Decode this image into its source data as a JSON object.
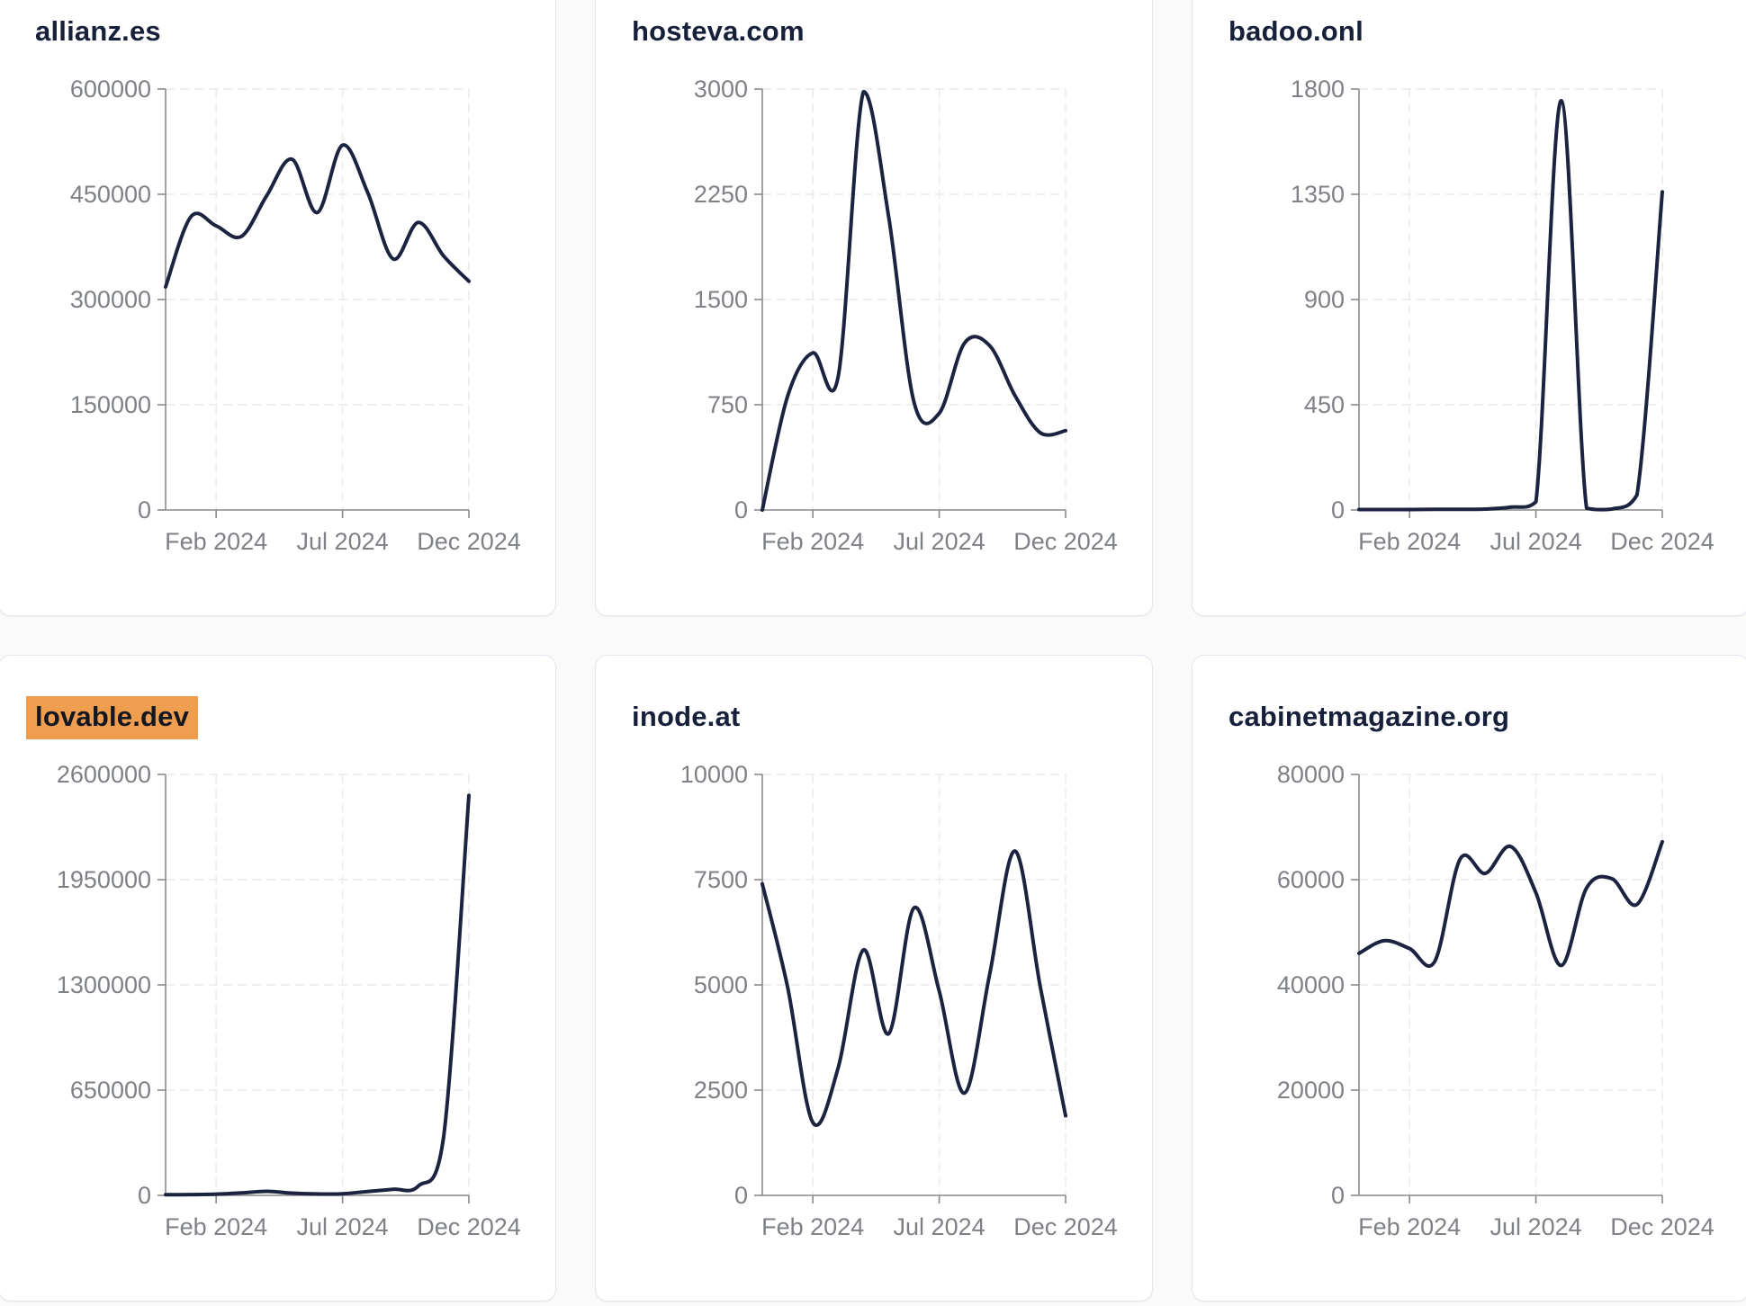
{
  "page": {
    "background": "#fafafa"
  },
  "theme": {
    "card_bg": "#ffffff",
    "card_border": "#e2e7f0",
    "title_color": "#16203a",
    "line_color": "#1c2340",
    "axis_color": "#8a8a8d",
    "grid_color": "#e9eaec",
    "tick_label_color": "#7e8186",
    "highlight_color": "#ef9d4f"
  },
  "chart_data": [
    {
      "type": "line",
      "title": "allianz.es",
      "highlighted": false,
      "x": [
        "Dec 2023",
        "Jan 2024",
        "Feb 2024",
        "Mar 2024",
        "Apr 2024",
        "May 2024",
        "Jun 2024",
        "Jul 2024",
        "Aug 2024",
        "Sep 2024",
        "Oct 2024",
        "Nov 2024",
        "Dec 2024"
      ],
      "values": [
        318000,
        418000,
        405000,
        390000,
        448000,
        500000,
        424000,
        520000,
        452000,
        358000,
        410000,
        362000,
        326000
      ],
      "ylim": [
        0,
        600000
      ],
      "yticks": [
        0,
        150000,
        300000,
        450000,
        600000
      ],
      "xticks": [
        {
          "label": "Feb 2024",
          "index": 2
        },
        {
          "label": "Jul 2024",
          "index": 7
        },
        {
          "label": "Dec 2024",
          "index": 12
        }
      ],
      "grid": "dashed",
      "legend": false
    },
    {
      "type": "line",
      "title": "hosteva.com",
      "highlighted": false,
      "x": [
        "Dec 2023",
        "Jan 2024",
        "Feb 2024",
        "Mar 2024",
        "Apr 2024",
        "May 2024",
        "Jun 2024",
        "Jul 2024",
        "Aug 2024",
        "Sep 2024",
        "Oct 2024",
        "Nov 2024",
        "Dec 2024"
      ],
      "values": [
        0,
        810,
        1120,
        950,
        2980,
        2090,
        770,
        690,
        1190,
        1170,
        815,
        550,
        565
      ],
      "ylim": [
        0,
        3000
      ],
      "yticks": [
        0,
        750,
        1500,
        2250,
        3000
      ],
      "xticks": [
        {
          "label": "Feb 2024",
          "index": 2
        },
        {
          "label": "Jul 2024",
          "index": 7
        },
        {
          "label": "Dec 2024",
          "index": 12
        }
      ],
      "grid": "dashed",
      "legend": false
    },
    {
      "type": "line",
      "title": "badoo.onl",
      "highlighted": false,
      "x": [
        "Dec 2023",
        "Jan 2024",
        "Feb 2024",
        "Mar 2024",
        "Apr 2024",
        "May 2024",
        "Jun 2024",
        "Jul 2024",
        "Aug 2024",
        "Sep 2024",
        "Oct 2024",
        "Nov 2024",
        "Dec 2024"
      ],
      "values": [
        2,
        2,
        2,
        3,
        3,
        4,
        12,
        35,
        1750,
        8,
        4,
        65,
        1360
      ],
      "ylim": [
        0,
        1800
      ],
      "yticks": [
        0,
        450,
        900,
        1350,
        1800
      ],
      "xticks": [
        {
          "label": "Feb 2024",
          "index": 2
        },
        {
          "label": "Jul 2024",
          "index": 7
        },
        {
          "label": "Dec 2024",
          "index": 12
        }
      ],
      "grid": "dashed",
      "legend": false
    },
    {
      "type": "line",
      "title": "lovable.dev",
      "highlighted": true,
      "x": [
        "Dec 2023",
        "Jan 2024",
        "Feb 2024",
        "Mar 2024",
        "Apr 2024",
        "May 2024",
        "Jun 2024",
        "Jul 2024",
        "Aug 2024",
        "Sep 2024",
        "Oct 2024",
        "Nov 2024",
        "Dec 2024"
      ],
      "values": [
        4000,
        5000,
        8000,
        15000,
        25000,
        14000,
        9000,
        10000,
        24000,
        38000,
        58000,
        360000,
        2470000
      ],
      "ylim": [
        0,
        2600000
      ],
      "yticks": [
        0,
        650000,
        1300000,
        1950000,
        2600000
      ],
      "xticks": [
        {
          "label": "Feb 2024",
          "index": 2
        },
        {
          "label": "Jul 2024",
          "index": 7
        },
        {
          "label": "Dec 2024",
          "index": 12
        }
      ],
      "grid": "dashed",
      "legend": false
    },
    {
      "type": "line",
      "title": "inode.at",
      "highlighted": false,
      "x": [
        "Dec 2023",
        "Jan 2024",
        "Feb 2024",
        "Mar 2024",
        "Apr 2024",
        "May 2024",
        "Jun 2024",
        "Jul 2024",
        "Aug 2024",
        "Sep 2024",
        "Oct 2024",
        "Nov 2024",
        "Dec 2024"
      ],
      "values": [
        7400,
        4950,
        1730,
        3030,
        5830,
        3840,
        6830,
        4850,
        2430,
        5270,
        8180,
        4950,
        1890
      ],
      "ylim": [
        0,
        10000
      ],
      "yticks": [
        0,
        2500,
        5000,
        7500,
        10000
      ],
      "xticks": [
        {
          "label": "Feb 2024",
          "index": 2
        },
        {
          "label": "Jul 2024",
          "index": 7
        },
        {
          "label": "Dec 2024",
          "index": 12
        }
      ],
      "grid": "dashed",
      "legend": false
    },
    {
      "type": "line",
      "title": "cabinetmagazine.org",
      "highlighted": false,
      "x": [
        "Dec 2023",
        "Jan 2024",
        "Feb 2024",
        "Mar 2024",
        "Apr 2024",
        "May 2024",
        "Jun 2024",
        "Jul 2024",
        "Aug 2024",
        "Sep 2024",
        "Oct 2024",
        "Nov 2024",
        "Dec 2024"
      ],
      "values": [
        46000,
        48400,
        46900,
        44500,
        63900,
        61200,
        66300,
        57500,
        43700,
        58400,
        60200,
        55300,
        67200
      ],
      "ylim": [
        0,
        80000
      ],
      "yticks": [
        0,
        20000,
        40000,
        60000,
        80000
      ],
      "xticks": [
        {
          "label": "Feb 2024",
          "index": 2
        },
        {
          "label": "Jul 2024",
          "index": 7
        },
        {
          "label": "Dec 2024",
          "index": 12
        }
      ],
      "grid": "dashed",
      "legend": false
    }
  ]
}
